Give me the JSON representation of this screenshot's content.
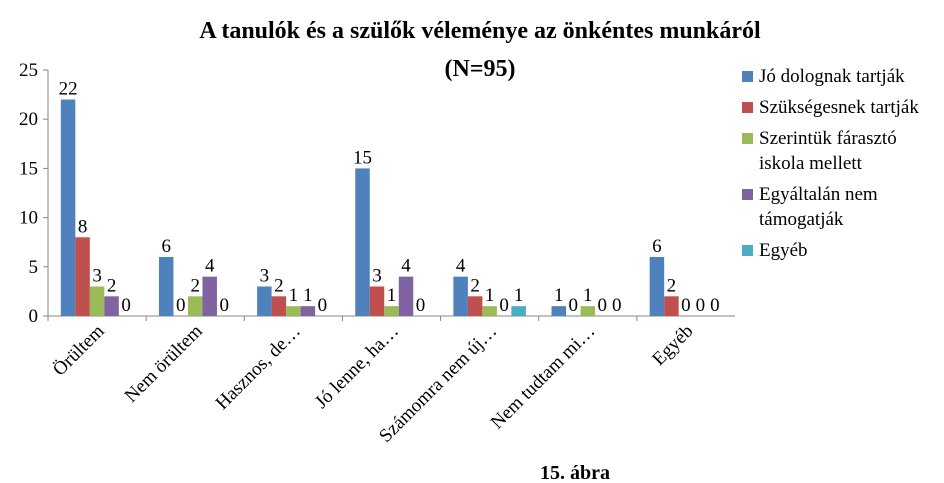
{
  "chart_data": {
    "type": "bar",
    "title": "A tanulók és a szülők véleménye az önkéntes munkáról (N=95)",
    "caption": "15. ábra",
    "categories": [
      "Örültem",
      "Nem örültem",
      "Hasznos, de…",
      "Jó lenne, ha…",
      "Számomra nem új…",
      "Nem tudtam mi…",
      "Egyéb"
    ],
    "series": [
      {
        "name": "Jó dolognak tartják",
        "color": "#4f81bd",
        "values": [
          22,
          6,
          3,
          15,
          4,
          1,
          6
        ]
      },
      {
        "name": "Szükségesnek tartják",
        "color": "#c0504d",
        "values": [
          8,
          0,
          2,
          3,
          2,
          0,
          2
        ]
      },
      {
        "name": "Szerintük fárasztó iskola mellett",
        "color": "#9bbb59",
        "values": [
          3,
          2,
          1,
          1,
          1,
          1,
          0
        ]
      },
      {
        "name": "Egyáltalán nem támogatják",
        "color": "#8064a2",
        "values": [
          2,
          4,
          1,
          4,
          0,
          0,
          0
        ]
      },
      {
        "name": "Egyéb",
        "color": "#4bacc6",
        "values": [
          0,
          0,
          0,
          0,
          1,
          0,
          0
        ]
      }
    ],
    "ylim": [
      0,
      25
    ],
    "yticks": [
      0,
      5,
      10,
      15,
      20,
      25
    ],
    "grid": false,
    "legend": "right"
  }
}
